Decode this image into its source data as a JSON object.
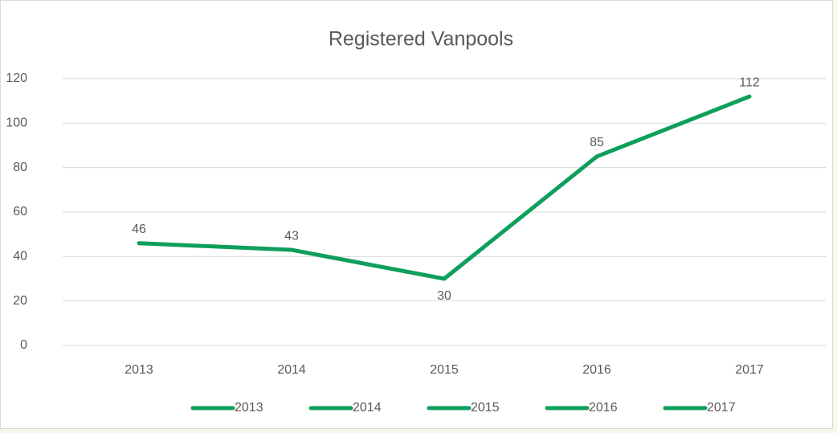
{
  "chart_data": {
    "type": "line",
    "title": "Registered Vanpools",
    "categories": [
      "2013",
      "2014",
      "2015",
      "2016",
      "2017"
    ],
    "values": [
      46,
      43,
      30,
      85,
      112
    ],
    "color": "#0e9f5b",
    "ylim": [
      0,
      120
    ],
    "yticks": [
      0,
      20,
      40,
      60,
      80,
      100,
      120
    ],
    "grid": true,
    "legend": "bottom"
  }
}
